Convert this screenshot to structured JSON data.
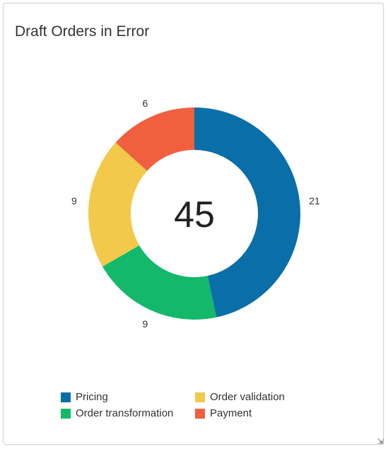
{
  "card": {
    "title": "Draft Orders in Error"
  },
  "chart_data": {
    "type": "pie",
    "variant": "donut",
    "title": "Draft Orders in Error",
    "center_label": "45",
    "categories": [
      "Pricing",
      "Order transformation",
      "Order validation",
      "Payment"
    ],
    "values": [
      21,
      9,
      9,
      6
    ],
    "colors": [
      "#0a6ea8",
      "#13b86b",
      "#f2c94a",
      "#f0603f"
    ],
    "data_labels": [
      "21",
      "9",
      "9",
      "6"
    ],
    "legend": {
      "placement": "bottom",
      "items": [
        {
          "label": "Pricing",
          "color": "#0a6ea8"
        },
        {
          "label": "Order validation",
          "color": "#f2c94a"
        },
        {
          "label": "Order transformation",
          "color": "#13b86b"
        },
        {
          "label": "Payment",
          "color": "#f0603f"
        }
      ]
    }
  },
  "corner_icon": "resize-grip-icon"
}
